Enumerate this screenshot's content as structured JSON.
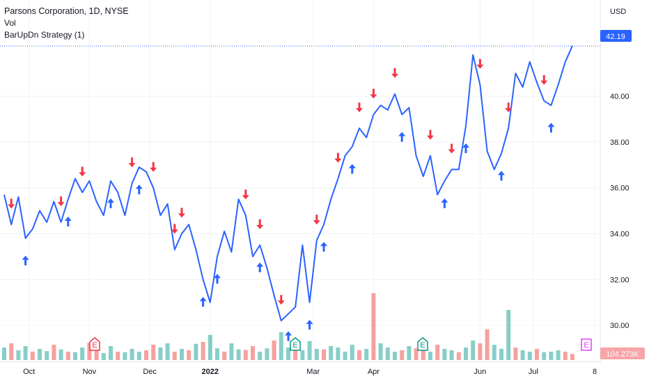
{
  "header": {
    "title": "Parsons Corporation, 1D, NYSE",
    "volume_label": "Vol",
    "strategy_label": "BarUpDn Strategy (1)"
  },
  "price_axis": {
    "currency": "USD",
    "last_price": "42.19",
    "last_volume": "104.273K"
  },
  "colors": {
    "line": "#2962ff",
    "up_arrow": "#2962ff",
    "down_arrow": "#f23645",
    "vol_up": "#26a69a",
    "vol_down": "#ef5350",
    "earnings_red": "#f23645",
    "earnings_green": "#089981",
    "earnings_magenta": "#e040fb",
    "price_tag": "#2962ff",
    "volume_tag": "#f7a5a8"
  },
  "earnings_markers": [
    {
      "label": "E",
      "color": "red"
    },
    {
      "label": "E",
      "color": "green"
    },
    {
      "label": "E",
      "color": "green"
    },
    {
      "label": "E",
      "color": "magenta"
    }
  ],
  "chart_data": {
    "type": "line",
    "x_tick_labels": [
      "Oct",
      "Nov",
      "Dec",
      "2022",
      "Mar",
      "Apr",
      "Jun",
      "Jul",
      "8"
    ],
    "y_tick_labels": [
      "30.00",
      "32.00",
      "34.00",
      "36.00",
      "38.00",
      "40.00",
      "42.19"
    ],
    "ylim": [
      29.0,
      44.2
    ],
    "grid": true,
    "series": [
      {
        "values": [
          35.7,
          34.4,
          35.6,
          33.8,
          34.2,
          35.0,
          34.5,
          35.4,
          34.5,
          35.5,
          36.4,
          35.8,
          36.3,
          35.4,
          34.8,
          36.3,
          35.8,
          34.8,
          36.2,
          36.9,
          36.7,
          36.0,
          34.8,
          35.3,
          33.3,
          34.0,
          34.4,
          33.3,
          32.0,
          31.0,
          33.0,
          34.1,
          33.2,
          35.5,
          34.8,
          33.0,
          33.5,
          32.5,
          31.3,
          30.2,
          30.5,
          30.8,
          33.5,
          31.0,
          33.7,
          34.4,
          35.5,
          36.4,
          37.4,
          37.8,
          38.6,
          38.2,
          39.2,
          39.6,
          39.4,
          40.1,
          39.2,
          39.5,
          37.4,
          36.5,
          37.4,
          35.7,
          36.3,
          36.8,
          36.8,
          38.7,
          41.8,
          40.5,
          37.6,
          36.8,
          37.5,
          38.6,
          41.0,
          40.4,
          41.5,
          40.6,
          39.8,
          39.6,
          40.5,
          41.5,
          42.2
        ],
        "up_arrows": [
          3,
          9,
          15,
          19,
          28,
          30,
          36,
          40,
          43,
          45,
          49,
          56,
          62,
          65,
          70,
          77
        ],
        "down_arrows": [
          1,
          8,
          11,
          18,
          21,
          24,
          25,
          34,
          36,
          39,
          44,
          47,
          50,
          52,
          55,
          60,
          63,
          67,
          71,
          76
        ]
      },
      {
        "name": "Vol",
        "values": [
          0.45,
          0.6,
          0.35,
          0.5,
          0.3,
          0.4,
          0.32,
          0.55,
          0.38,
          0.3,
          0.28,
          0.45,
          0.62,
          0.33,
          0.25,
          0.5,
          0.3,
          0.28,
          0.4,
          0.3,
          0.35,
          0.55,
          0.45,
          0.6,
          0.3,
          0.4,
          0.35,
          0.58,
          0.65,
          0.9,
          0.42,
          0.3,
          0.6,
          0.38,
          0.36,
          0.5,
          0.3,
          0.42,
          0.7,
          1.0,
          0.45,
          0.55,
          0.35,
          0.68,
          0.4,
          0.38,
          0.5,
          0.45,
          0.3,
          0.55,
          0.35,
          0.4,
          2.4,
          0.6,
          0.45,
          0.3,
          0.35,
          0.5,
          0.42,
          0.38,
          0.3,
          0.55,
          0.4,
          0.35,
          0.28,
          0.45,
          0.7,
          0.6,
          1.1,
          0.55,
          0.4,
          1.8,
          0.45,
          0.35,
          0.3,
          0.4,
          0.28,
          0.3,
          0.35,
          0.3,
          0.22
        ],
        "up": [
          1,
          0,
          1,
          1,
          0,
          1,
          1,
          0,
          1,
          0,
          1,
          1,
          0,
          0,
          1,
          1,
          0,
          1,
          1,
          1,
          0,
          0,
          1,
          1,
          0,
          1,
          0,
          1,
          0,
          1,
          1,
          0,
          1,
          1,
          0,
          0,
          1,
          1,
          0,
          1,
          1,
          0,
          1,
          1,
          1,
          0,
          1,
          1,
          1,
          1,
          0,
          1,
          0,
          1,
          1,
          1,
          0,
          1,
          0,
          0,
          1,
          0,
          1,
          1,
          0,
          1,
          1,
          0,
          0,
          1,
          1,
          1,
          0,
          1,
          1,
          0,
          1,
          1,
          1,
          0,
          0
        ]
      }
    ]
  }
}
